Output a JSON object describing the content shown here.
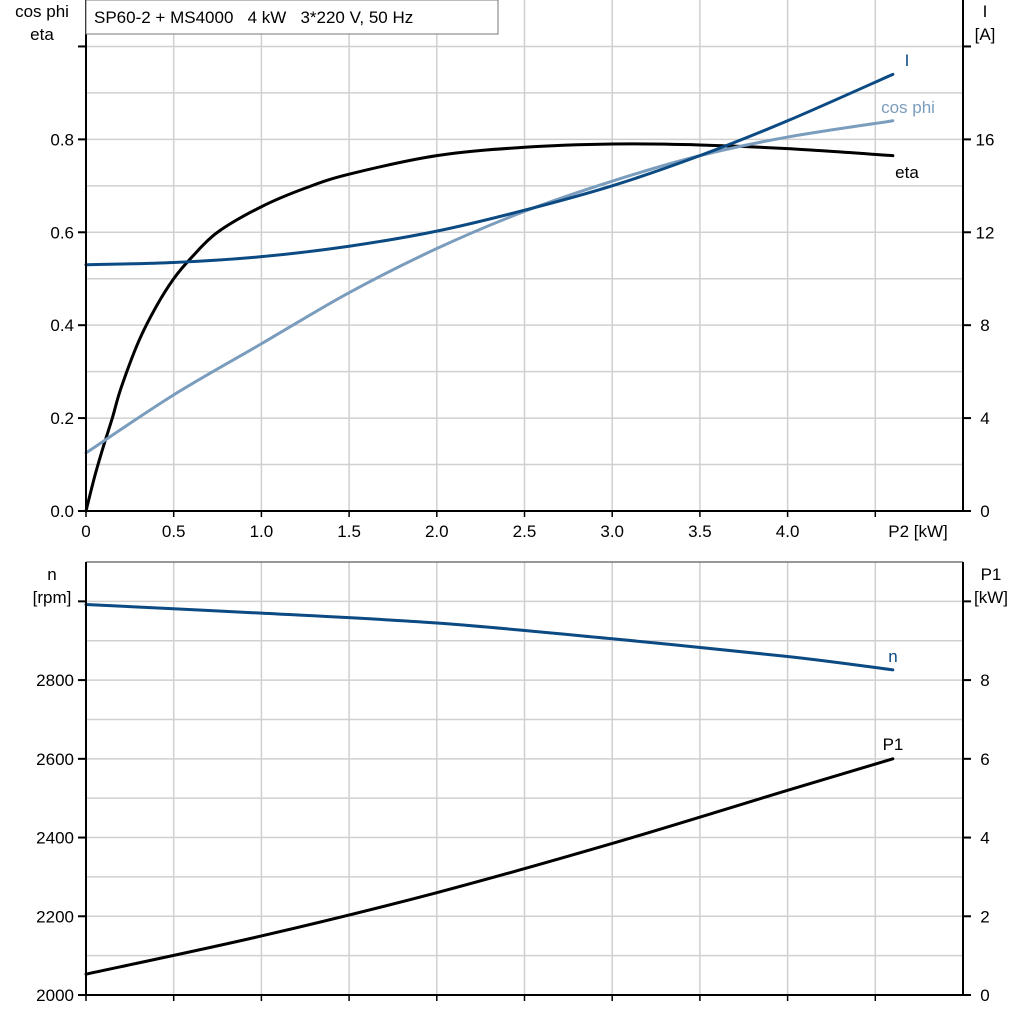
{
  "colors": {
    "I": "#0b4a82",
    "cos_phi": "#7b9dbd",
    "eta": "#000000",
    "n": "#0b4a82",
    "P1": "#000000",
    "grid": "#d0d0d0"
  },
  "chart_data": [
    {
      "type": "line",
      "title": "SP60-2 + MS4000   4 kW   3*220 V, 50 Hz",
      "xlabel": "P2 [kW]",
      "ylabel_left": [
        "cos phi",
        "eta"
      ],
      "ylabel_right": [
        "I",
        "[A]"
      ],
      "xlim": [
        0,
        5
      ],
      "ylim_left": [
        0,
        1.1
      ],
      "ylim_right": [
        0,
        22
      ],
      "x_ticks": [
        "0",
        "0.5",
        "1.0",
        "1.5",
        "2.0",
        "2.5",
        "3.0",
        "3.5",
        "4.0"
      ],
      "y_left_ticks": [
        "0.0",
        "0.2",
        "0.4",
        "0.6",
        "0.8"
      ],
      "y_right_ticks": [
        "0",
        "4",
        "8",
        "12",
        "16"
      ],
      "grid": true,
      "series": [
        {
          "name": "eta",
          "axis": "left",
          "x": [
            0,
            0.05,
            0.1,
            0.15,
            0.2,
            0.3,
            0.4,
            0.5,
            0.6,
            0.75,
            1.0,
            1.25,
            1.5,
            2.0,
            2.5,
            3.0,
            3.5,
            4.0,
            4.6
          ],
          "values": [
            0,
            0.075,
            0.14,
            0.2,
            0.265,
            0.365,
            0.44,
            0.5,
            0.545,
            0.6,
            0.655,
            0.695,
            0.725,
            0.765,
            0.783,
            0.79,
            0.788,
            0.78,
            0.765
          ]
        },
        {
          "name": "cos phi",
          "axis": "left",
          "x": [
            0,
            0.5,
            1.0,
            1.5,
            2.0,
            2.5,
            3.0,
            3.5,
            4.0,
            4.6
          ],
          "values": [
            0.125,
            0.25,
            0.36,
            0.47,
            0.565,
            0.645,
            0.71,
            0.765,
            0.805,
            0.84
          ]
        },
        {
          "name": "I",
          "axis": "right",
          "x": [
            0,
            0.5,
            1.0,
            1.5,
            2.0,
            2.5,
            3.0,
            3.5,
            4.0,
            4.6
          ],
          "values": [
            10.6,
            10.7,
            10.95,
            11.4,
            12.05,
            12.95,
            14.0,
            15.3,
            16.8,
            18.8
          ]
        }
      ]
    },
    {
      "type": "line",
      "xlim": [
        0,
        5
      ],
      "ylabel_left": [
        "n",
        "[rpm]"
      ],
      "ylabel_right": [
        "P1",
        "[kW]"
      ],
      "ylim_left": [
        2000,
        3100
      ],
      "ylim_right": [
        0,
        11
      ],
      "y_left_ticks": [
        "2000",
        "2200",
        "2400",
        "2600",
        "2800"
      ],
      "y_right_ticks": [
        "0",
        "2",
        "4",
        "6",
        "8"
      ],
      "grid": true,
      "series": [
        {
          "name": "n",
          "axis": "left",
          "x": [
            0,
            1,
            2,
            3,
            4,
            4.6
          ],
          "values": [
            2992,
            2970,
            2945,
            2905,
            2860,
            2826
          ]
        },
        {
          "name": "P1",
          "axis": "right",
          "x": [
            0,
            1,
            2,
            3,
            4,
            4.6
          ],
          "values": [
            0.53,
            1.5,
            2.6,
            3.85,
            5.2,
            6.0
          ]
        }
      ]
    }
  ]
}
